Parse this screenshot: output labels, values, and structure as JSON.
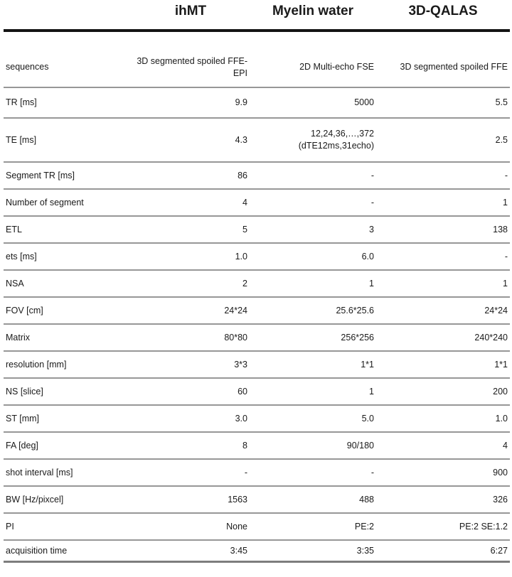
{
  "table": {
    "columns": [
      "",
      "ihMT",
      "Myelin water",
      "3D-QALAS"
    ],
    "rows": [
      [
        "sequences",
        "3D segmented spoiled FFE-\nEPI",
        "2D Multi-echo FSE",
        "3D segmented spoiled FFE"
      ],
      [
        "TR [ms]",
        "9.9",
        "5000",
        "5.5"
      ],
      [
        "TE [ms]",
        "4.3",
        "12,24,36,…,372\n(dTE12ms,31echo)",
        "2.5"
      ],
      [
        "Segment TR [ms]",
        "86",
        "-",
        "-"
      ],
      [
        "Number of segment",
        "4",
        "-",
        "1"
      ],
      [
        "ETL",
        "5",
        "3",
        "138"
      ],
      [
        "ets [ms]",
        "1.0",
        "6.0",
        "-"
      ],
      [
        "NSA",
        "2",
        "1",
        "1"
      ],
      [
        "FOV [cm]",
        "24*24",
        "25.6*25.6",
        "24*24"
      ],
      [
        "Matrix",
        "80*80",
        "256*256",
        "240*240"
      ],
      [
        "resolution [mm]",
        "3*3",
        "1*1",
        "1*1"
      ],
      [
        "NS [slice]",
        "60",
        "1",
        "200"
      ],
      [
        "ST [mm]",
        "3.0",
        "5.0",
        "1.0"
      ],
      [
        "FA [deg]",
        "8",
        "90/180",
        "4"
      ],
      [
        "shot interval [ms]",
        "-",
        "-",
        "900"
      ],
      [
        "BW [Hz/pixcel]",
        "1563",
        "488",
        "326"
      ],
      [
        "PI",
        "None",
        "PE:2",
        "PE:2 SE:1.2"
      ],
      [
        "acquisition time",
        "3:45",
        "3:35",
        "6:27"
      ]
    ]
  },
  "colors": {
    "text": "#1a1a1a",
    "header_rule": "#141414",
    "row_rule": "#979797",
    "bottom_rule": "#7d7d7d",
    "background": "#ffffff"
  }
}
